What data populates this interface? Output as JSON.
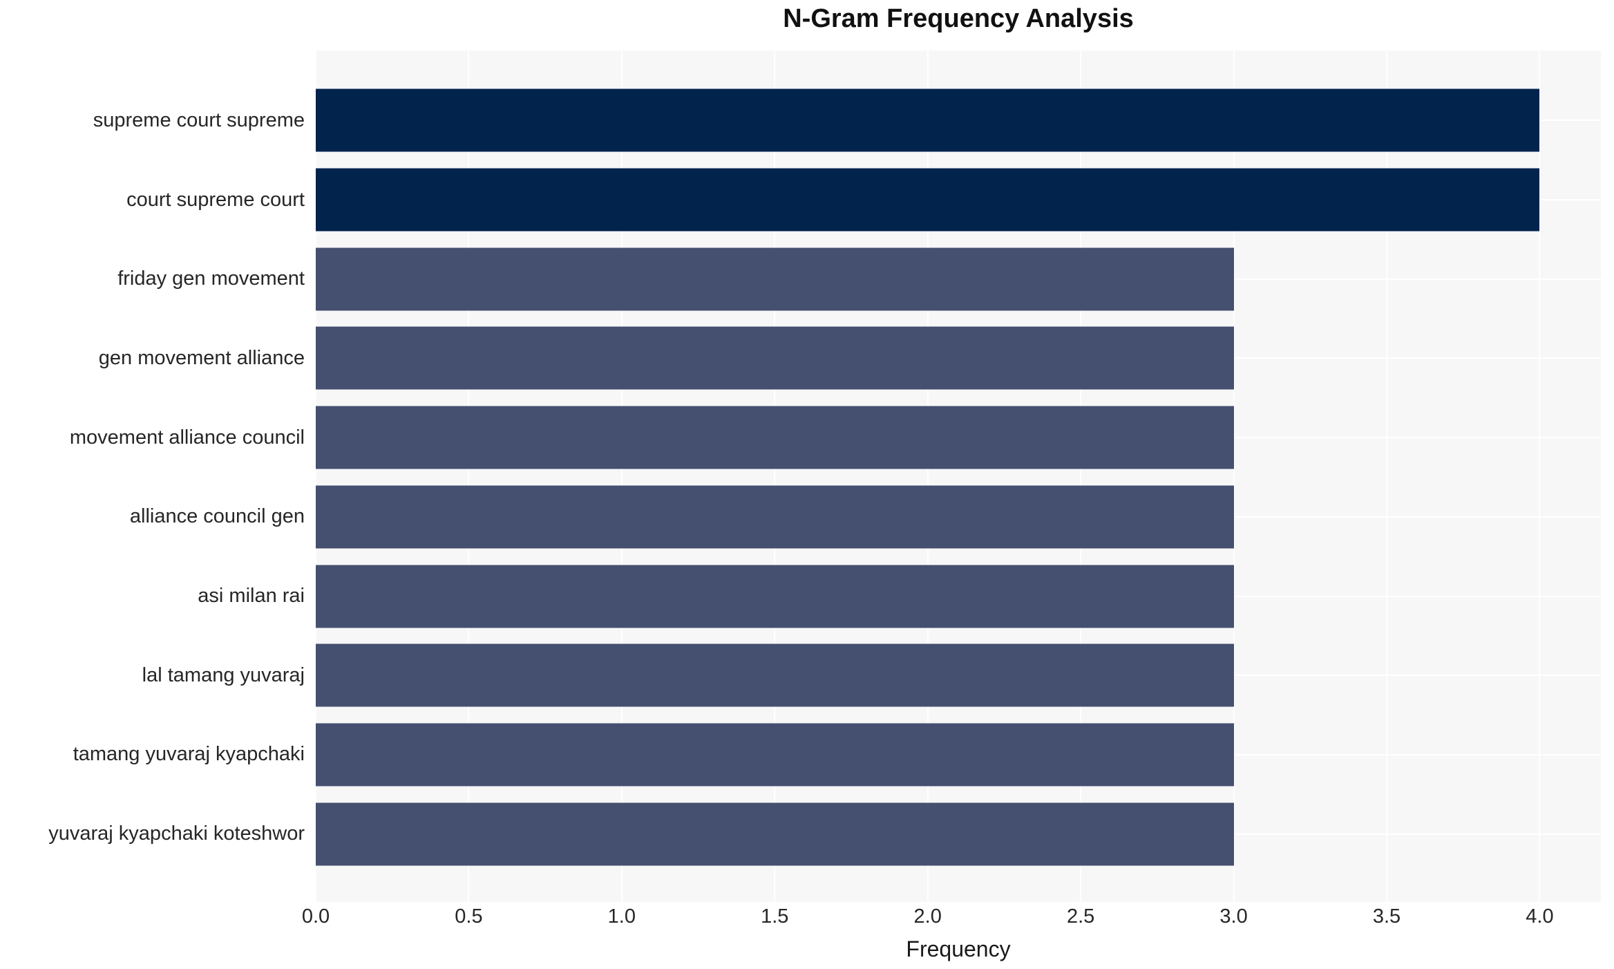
{
  "chart_data": {
    "type": "bar",
    "orientation": "horizontal",
    "title": "N-Gram Frequency Analysis",
    "xlabel": "Frequency",
    "ylabel": "",
    "categories": [
      "supreme court supreme",
      "court supreme court",
      "friday gen movement",
      "gen movement alliance",
      "movement alliance council",
      "alliance council gen",
      "asi milan rai",
      "lal tamang yuvaraj",
      "tamang yuvaraj kyapchaki",
      "yuvaraj kyapchaki koteshwor"
    ],
    "values": [
      4,
      4,
      3,
      3,
      3,
      3,
      3,
      3,
      3,
      3
    ],
    "xlim": [
      0,
      4.2
    ],
    "xticks": [
      0.0,
      0.5,
      1.0,
      1.5,
      2.0,
      2.5,
      3.0,
      3.5,
      4.0
    ],
    "xtick_labels": [
      "0.0",
      "0.5",
      "1.0",
      "1.5",
      "2.0",
      "2.5",
      "3.0",
      "3.5",
      "4.0"
    ],
    "grid": true,
    "legend": "none",
    "colors": {
      "bar_high": "#02234c",
      "bar_normal": "#455070",
      "plot_background": "#f7f7f7",
      "gridline": "#ffffff",
      "tick_text": "#262626",
      "title_text": "#111111"
    },
    "bar_colors": [
      "#02234c",
      "#02234c",
      "#455070",
      "#455070",
      "#455070",
      "#455070",
      "#455070",
      "#455070",
      "#455070",
      "#455070"
    ]
  }
}
